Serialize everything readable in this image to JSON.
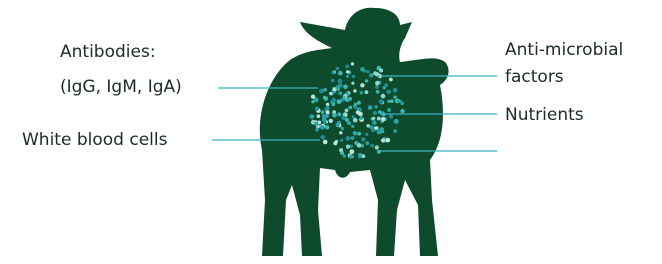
{
  "labels": {
    "antibodies": [
      "Antibodies:",
      "(IgG, IgM, IgA)"
    ],
    "white_blood_cells": "White blood cells",
    "anti_microbial": [
      "Anti-microbial",
      "factors"
    ],
    "nutrients": "Nutrients"
  }
}
